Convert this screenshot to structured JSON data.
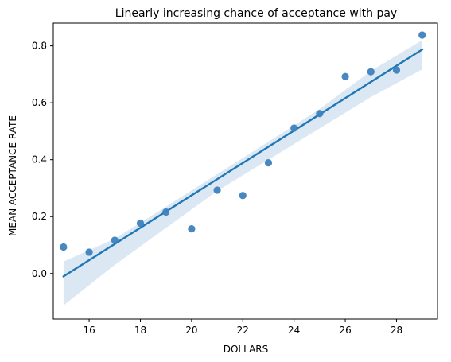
{
  "chart_data": {
    "type": "scatter",
    "title": "Linearly increasing chance of acceptance with pay",
    "xlabel": "DOLLARS",
    "ylabel": "MEAN ACCEPTANCE RATE",
    "xlim": [
      14.6,
      29.6
    ],
    "ylim": [
      -0.16,
      0.88
    ],
    "xticks": [
      16,
      18,
      20,
      22,
      24,
      26,
      28
    ],
    "yticks": [
      0.0,
      0.2,
      0.4,
      0.6,
      0.8
    ],
    "ytick_labels": [
      "0.0",
      "0.2",
      "0.4",
      "0.6",
      "0.8"
    ],
    "grid": false,
    "points": {
      "x": [
        15,
        16,
        17,
        18,
        19,
        20,
        21,
        22,
        23,
        24,
        25,
        26,
        27,
        28,
        29
      ],
      "y": [
        0.093,
        0.075,
        0.117,
        0.177,
        0.216,
        0.157,
        0.293,
        0.274,
        0.389,
        0.511,
        0.562,
        0.692,
        0.709,
        0.715,
        0.838
      ]
    },
    "regression": {
      "x": [
        15,
        29
      ],
      "y": [
        -0.01,
        0.787
      ]
    },
    "confidence_band": {
      "x": [
        15,
        17,
        19,
        21,
        23,
        25,
        27,
        29
      ],
      "lower": [
        -0.112,
        0.03,
        0.16,
        0.29,
        0.4,
        0.51,
        0.62,
        0.717
      ],
      "upper": [
        0.042,
        0.122,
        0.235,
        0.349,
        0.463,
        0.578,
        0.712,
        0.82
      ]
    },
    "colors": {
      "points": "#3e82bd",
      "line": "#1f77b4",
      "band": "#d5e4f2",
      "axes": "#000000"
    }
  }
}
